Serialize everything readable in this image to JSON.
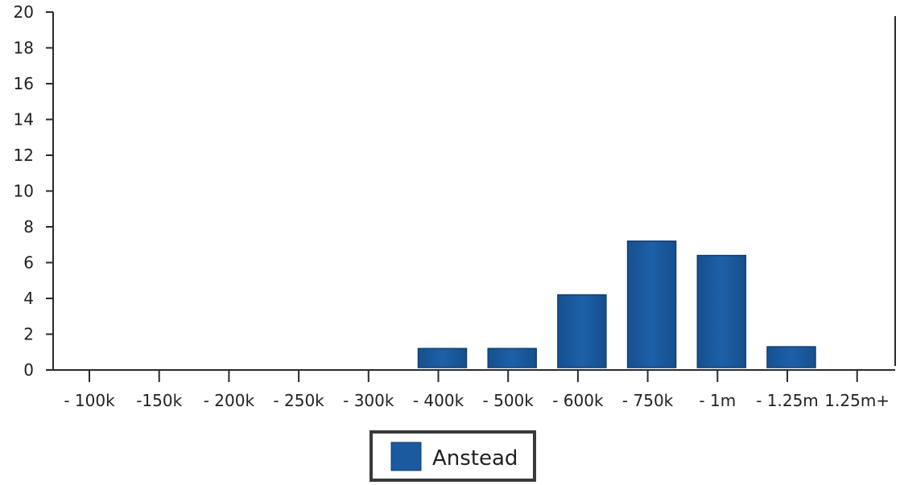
{
  "chart_data": {
    "type": "bar",
    "categories": [
      "- 100k",
      "-150k",
      "- 200k",
      "- 250k",
      "- 300k",
      "- 400k",
      "- 500k",
      "- 600k",
      "- 750k",
      "- 1m",
      "- 1.25m",
      "1.25m+"
    ],
    "series": [
      {
        "name": "Anstead",
        "values": [
          0,
          0,
          0,
          0,
          0,
          1.2,
          1.2,
          4.2,
          7.2,
          6.4,
          1.3,
          0
        ],
        "color": "#1b5a9e"
      }
    ],
    "ylim": [
      0,
      20
    ],
    "yticks": [
      0,
      2,
      4,
      6,
      8,
      10,
      12,
      14,
      16,
      18,
      20
    ],
    "legend_position": "bottom-center",
    "grid": false
  }
}
